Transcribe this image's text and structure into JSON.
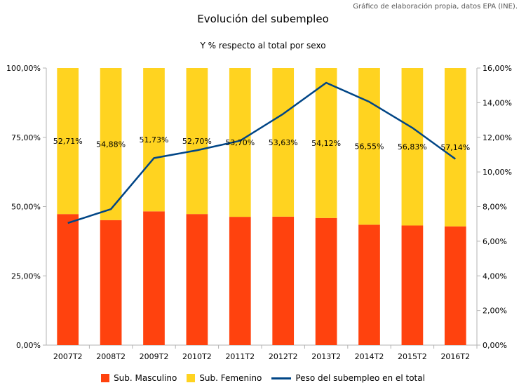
{
  "source": "Gráfico de elaboración propia, datos EPA (INE).",
  "chart_data": {
    "type": "bar",
    "stacked": true,
    "title": "Evolución del subempleo",
    "subtitle": "Y % respecto al total por sexo",
    "categories": [
      "2007T2",
      "2008T2",
      "2009T2",
      "2010T2",
      "2011T2",
      "2012T2",
      "2013T2",
      "2014T2",
      "2015T2",
      "2016T2"
    ],
    "series": [
      {
        "name": "Sub. Masculino",
        "type": "bar",
        "axis": "left",
        "color": "#ff420e",
        "values": [
          47.29,
          45.12,
          48.27,
          47.3,
          46.3,
          46.37,
          45.88,
          43.45,
          43.17,
          42.86
        ]
      },
      {
        "name": "Sub. Femenino",
        "type": "bar",
        "axis": "left",
        "color": "#ffd320",
        "values": [
          52.71,
          54.88,
          51.73,
          52.7,
          53.7,
          53.63,
          54.12,
          56.55,
          56.83,
          57.14
        ],
        "labels": [
          "52,71%",
          "54,88%",
          "51,73%",
          "52,70%",
          "53,70%",
          "53,63%",
          "54,12%",
          "56,55%",
          "56,83%",
          "57,14%"
        ]
      },
      {
        "name": "Peso del subempleo en el total",
        "type": "line",
        "axis": "right",
        "color": "#004586",
        "values": [
          7.05,
          7.85,
          10.8,
          11.25,
          11.8,
          13.35,
          15.15,
          14.05,
          12.55,
          10.75
        ]
      }
    ],
    "y_left": {
      "min": 0,
      "max": 100,
      "ticks": [
        "0,00%",
        "25,00%",
        "50,00%",
        "75,00%",
        "100,00%"
      ]
    },
    "y_right": {
      "min": 0,
      "max": 16,
      "ticks": [
        "0,00%",
        "2,00%",
        "4,00%",
        "6,00%",
        "8,00%",
        "10,00%",
        "12,00%",
        "14,00%",
        "16,00%"
      ]
    },
    "grid": false,
    "legend_position": "bottom"
  }
}
